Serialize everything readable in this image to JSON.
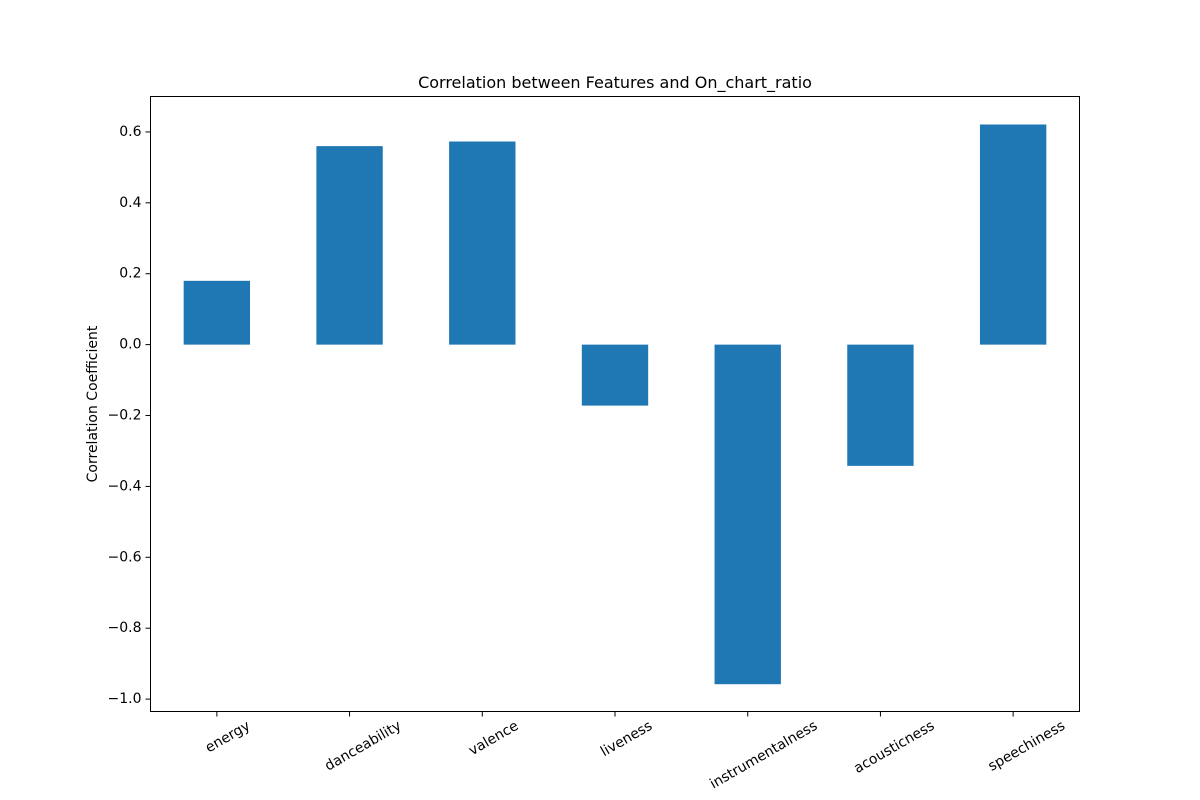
{
  "chart_data": {
    "type": "bar",
    "title": "Correlation between Features and On_chart_ratio",
    "xlabel": "",
    "ylabel": "Correlation Coefficient",
    "categories": [
      "energy",
      "danceability",
      "valence",
      "liveness",
      "instrumentalness",
      "acousticness",
      "speechiness"
    ],
    "values": [
      0.18,
      0.56,
      0.573,
      -0.172,
      -0.958,
      -0.342,
      0.621
    ],
    "ylim": [
      -1.035,
      0.7
    ],
    "yticks": [
      -1.0,
      -0.8,
      -0.6,
      -0.4,
      -0.2,
      0.0,
      0.2,
      0.4,
      0.6
    ],
    "ytick_labels": [
      "−1.0",
      "−0.8",
      "−0.6",
      "−0.4",
      "−0.2",
      "0.0",
      "0.2",
      "0.4",
      "0.6"
    ],
    "bar_color": "#1f77b4",
    "grid": false,
    "legend": "none"
  }
}
